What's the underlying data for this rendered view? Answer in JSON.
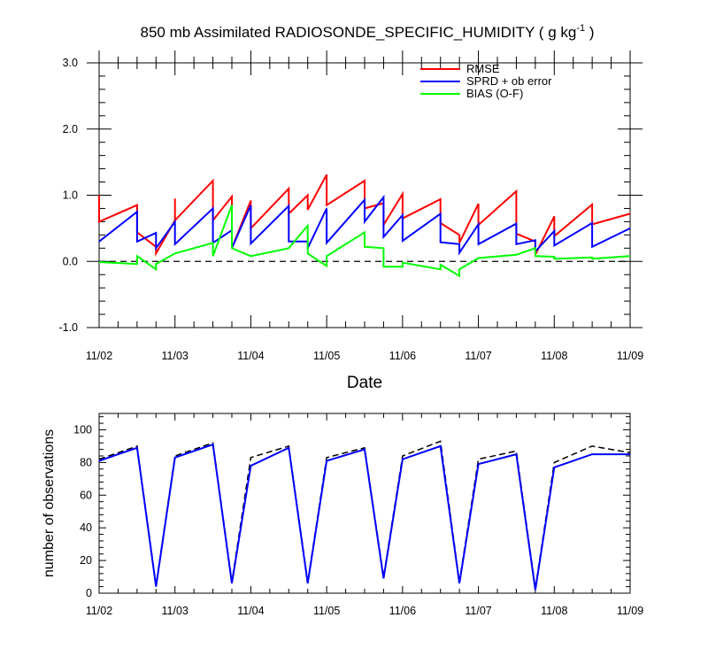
{
  "title": "850 mb Assimilated RADIOSONDE_SPECIFIC_HUMIDITY ( g kg",
  "title_sup": "-1",
  "title_end": " )",
  "colors": {
    "rmse": "#ff0000",
    "sprd": "#0000ff",
    "bias": "#00ff00",
    "black": "#000000"
  },
  "chart_data": [
    {
      "type": "line",
      "xlabel": "Date",
      "ylabel": "",
      "x_tick_labels": [
        "11/02",
        "11/03",
        "11/04",
        "11/05",
        "11/06",
        "11/07",
        "11/08",
        "11/09"
      ],
      "xlim": [
        0,
        7
      ],
      "ylim": [
        -1.0,
        3.0
      ],
      "y_tick_values": [
        -1.0,
        0.0,
        1.0,
        2.0,
        3.0
      ],
      "y_tick_labels": [
        "-1.0",
        "0.0",
        "1.0",
        "2.0",
        "3.0"
      ],
      "legend_position": "top-right",
      "reference_line": {
        "y": 0.0,
        "style": "dashed"
      },
      "series": [
        {
          "name": "RMSE",
          "color": "#ff0000",
          "points": [
            [
              0,
              1.0
            ],
            [
              0,
              0.6
            ],
            [
              0.5,
              0.85
            ],
            [
              0.5,
              0.44
            ],
            [
              0.75,
              0.22
            ],
            [
              0.75,
              0.12
            ],
            [
              1,
              0.62
            ],
            [
              1,
              0.95
            ],
            [
              1,
              0.62
            ],
            [
              1.5,
              1.22
            ],
            [
              1.5,
              0.62
            ],
            [
              1.75,
              0.98
            ],
            [
              1.75,
              0.2
            ],
            [
              2,
              0.92
            ],
            [
              2,
              0.5
            ],
            [
              2.5,
              1.1
            ],
            [
              2.5,
              0.72
            ],
            [
              2.75,
              1.0
            ],
            [
              2.75,
              0.78
            ],
            [
              3,
              1.31
            ],
            [
              3,
              0.85
            ],
            [
              3.5,
              1.22
            ],
            [
              3.5,
              0.8
            ],
            [
              3.75,
              0.88
            ],
            [
              3.75,
              0.55
            ],
            [
              4,
              1.02
            ],
            [
              4,
              0.65
            ],
            [
              4.5,
              0.94
            ],
            [
              4.5,
              0.58
            ],
            [
              4.75,
              0.4
            ],
            [
              4.75,
              0.28
            ],
            [
              5,
              0.87
            ],
            [
              5,
              0.55
            ],
            [
              5.5,
              1.06
            ],
            [
              5.5,
              0.42
            ],
            [
              5.75,
              0.3
            ],
            [
              5.75,
              0.1
            ],
            [
              6,
              0.68
            ],
            [
              6,
              0.38
            ],
            [
              6.5,
              0.86
            ],
            [
              6.5,
              0.56
            ],
            [
              7,
              0.72
            ]
          ]
        },
        {
          "name": "SPRD + ob error",
          "color": "#0000ff",
          "points": [
            [
              0,
              0.3
            ],
            [
              0.5,
              0.75
            ],
            [
              0.5,
              0.3
            ],
            [
              0.75,
              0.43
            ],
            [
              0.75,
              0.2
            ],
            [
              1,
              0.6
            ],
            [
              1,
              0.26
            ],
            [
              1.5,
              0.8
            ],
            [
              1.5,
              0.28
            ],
            [
              1.75,
              0.47
            ],
            [
              1.75,
              0.2
            ],
            [
              2,
              0.85
            ],
            [
              2,
              0.27
            ],
            [
              2.5,
              0.84
            ],
            [
              2.5,
              0.3
            ],
            [
              2.75,
              0.3
            ],
            [
              2.75,
              0.2
            ],
            [
              3,
              0.8
            ],
            [
              3,
              0.28
            ],
            [
              3.5,
              0.93
            ],
            [
              3.5,
              0.6
            ],
            [
              3.75,
              0.97
            ],
            [
              3.75,
              0.37
            ],
            [
              4,
              0.7
            ],
            [
              4,
              0.31
            ],
            [
              4.5,
              0.72
            ],
            [
              4.5,
              0.29
            ],
            [
              4.75,
              0.26
            ],
            [
              4.75,
              0.13
            ],
            [
              5,
              0.56
            ],
            [
              5,
              0.26
            ],
            [
              5.5,
              0.57
            ],
            [
              5.5,
              0.26
            ],
            [
              5.75,
              0.32
            ],
            [
              5.75,
              0.15
            ],
            [
              6,
              0.46
            ],
            [
              6,
              0.24
            ],
            [
              6.5,
              0.58
            ],
            [
              6.5,
              0.22
            ],
            [
              7,
              0.5
            ]
          ]
        },
        {
          "name": "BIAS (O-F)",
          "color": "#00ff00",
          "points": [
            [
              0,
              -0.01
            ],
            [
              0.5,
              -0.04
            ],
            [
              0.5,
              0.08
            ],
            [
              0.75,
              -0.12
            ],
            [
              0.75,
              -0.04
            ],
            [
              1,
              0.12
            ],
            [
              1.5,
              0.28
            ],
            [
              1.5,
              0.08
            ],
            [
              1.75,
              0.85
            ],
            [
              1.75,
              0.2
            ],
            [
              2,
              0.08
            ],
            [
              2.5,
              0.2
            ],
            [
              2.75,
              0.54
            ],
            [
              2.75,
              0.12
            ],
            [
              3,
              -0.07
            ],
            [
              3,
              0.08
            ],
            [
              3.5,
              0.44
            ],
            [
              3.5,
              0.22
            ],
            [
              3.75,
              0.2
            ],
            [
              3.75,
              -0.08
            ],
            [
              4,
              -0.08
            ],
            [
              4,
              -0.02
            ],
            [
              4.5,
              -0.12
            ],
            [
              4.5,
              -0.05
            ],
            [
              4.75,
              -0.22
            ],
            [
              4.75,
              -0.12
            ],
            [
              5,
              0.05
            ],
            [
              5.5,
              0.1
            ],
            [
              5.75,
              0.2
            ],
            [
              5.75,
              0.08
            ],
            [
              6,
              0.07
            ],
            [
              6,
              0.04
            ],
            [
              6.5,
              0.06
            ],
            [
              6.5,
              0.04
            ],
            [
              7,
              0.08
            ]
          ]
        }
      ]
    },
    {
      "type": "line",
      "xlabel": "",
      "ylabel": "number of observations",
      "x_tick_labels": [
        "11/02",
        "11/03",
        "11/04",
        "11/05",
        "11/06",
        "11/07",
        "11/08",
        "11/09"
      ],
      "xlim": [
        0,
        7
      ],
      "ylim": [
        0,
        110
      ],
      "y_tick_values": [
        0,
        20,
        40,
        60,
        80,
        100
      ],
      "y_tick_labels": [
        "0",
        "20",
        "40",
        "60",
        "80",
        "100"
      ],
      "series": [
        {
          "color": "#000000",
          "style": "dashed",
          "points": [
            [
              0,
              82
            ],
            [
              0.5,
              90
            ],
            [
              0.75,
              5
            ],
            [
              1,
              84
            ],
            [
              1.5,
              92
            ],
            [
              1.75,
              7
            ],
            [
              2,
              83
            ],
            [
              2.5,
              90
            ],
            [
              2.75,
              7
            ],
            [
              3,
              83
            ],
            [
              3.5,
              89
            ],
            [
              3.75,
              10
            ],
            [
              4,
              84
            ],
            [
              4.5,
              93
            ],
            [
              4.75,
              7
            ],
            [
              5,
              82
            ],
            [
              5.5,
              87
            ],
            [
              5.75,
              3
            ],
            [
              6,
              80
            ],
            [
              6.5,
              90
            ],
            [
              7,
              86
            ]
          ]
        },
        {
          "color": "#0000ff",
          "points": [
            [
              0,
              81
            ],
            [
              0.5,
              89
            ],
            [
              0.75,
              4
            ],
            [
              1,
              83
            ],
            [
              1.5,
              91
            ],
            [
              1.75,
              6
            ],
            [
              2,
              78
            ],
            [
              2.5,
              89
            ],
            [
              2.75,
              6
            ],
            [
              3,
              81
            ],
            [
              3.5,
              88
            ],
            [
              3.75,
              9
            ],
            [
              4,
              82
            ],
            [
              4.5,
              90
            ],
            [
              4.75,
              6
            ],
            [
              5,
              79
            ],
            [
              5.5,
              85
            ],
            [
              5.75,
              2
            ],
            [
              6,
              77
            ],
            [
              6.5,
              85
            ],
            [
              7,
              85
            ]
          ]
        }
      ]
    }
  ]
}
